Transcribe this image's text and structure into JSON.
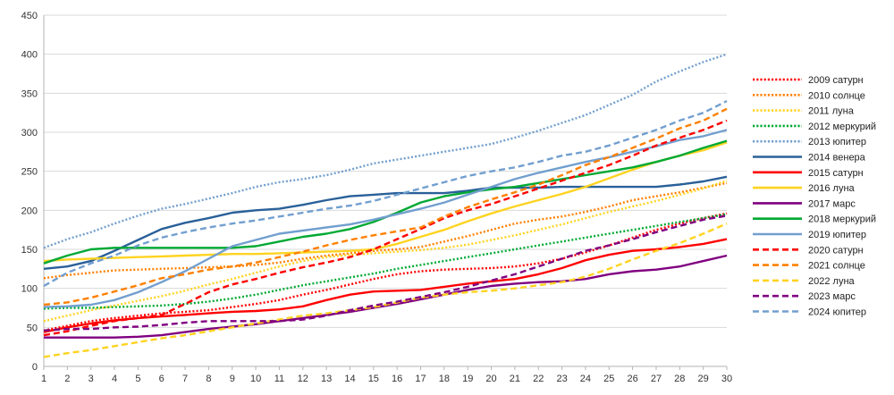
{
  "chart_data": {
    "type": "line",
    "title": "",
    "xlabel": "",
    "ylabel": "",
    "ylim": [
      0,
      450
    ],
    "y_ticks": [
      0,
      50,
      100,
      150,
      200,
      250,
      300,
      350,
      400,
      450
    ],
    "x": [
      1,
      2,
      3,
      4,
      5,
      6,
      7,
      8,
      9,
      10,
      11,
      12,
      13,
      14,
      15,
      16,
      17,
      18,
      19,
      20,
      21,
      22,
      23,
      24,
      25,
      26,
      27,
      28,
      29,
      30
    ],
    "x_tick_labels": [
      "1",
      "2",
      "3",
      "4",
      "5",
      "6",
      "7",
      "8",
      "9",
      "10",
      "11",
      "12",
      "13",
      "14",
      "15",
      "16",
      "17",
      "18",
      "19",
      "20",
      "21",
      "22",
      "23",
      "24",
      "25",
      "26",
      "27",
      "28",
      "29",
      "30"
    ],
    "grid": "horizontal",
    "legend": "right",
    "series": [
      {
        "name": "2009 сатурн",
        "color": "#ff0000",
        "style": "dotted",
        "values": [
          46,
          52,
          58,
          62,
          65,
          68,
          70,
          72,
          76,
          80,
          85,
          92,
          98,
          105,
          112,
          118,
          122,
          124,
          125,
          126,
          128,
          132,
          138,
          146,
          155,
          165,
          175,
          183,
          190,
          196
        ]
      },
      {
        "name": "2010 солнце",
        "color": "#ff8000",
        "style": "dotted",
        "values": [
          113,
          117,
          120,
          123,
          124,
          125,
          126,
          127,
          128,
          130,
          133,
          138,
          142,
          145,
          148,
          150,
          153,
          160,
          167,
          175,
          183,
          188,
          192,
          198,
          205,
          213,
          218,
          223,
          229,
          235
        ]
      },
      {
        "name": "2011 луна",
        "color": "#ffd320",
        "style": "dotted",
        "values": [
          58,
          65,
          72,
          78,
          84,
          90,
          97,
          105,
          112,
          120,
          128,
          135,
          140,
          143,
          145,
          147,
          149,
          152,
          156,
          162,
          168,
          175,
          182,
          190,
          198,
          205,
          212,
          220,
          228,
          238
        ]
      },
      {
        "name": "2012 меркурий",
        "color": "#00a933",
        "style": "dotted",
        "values": [
          74,
          75,
          75,
          76,
          77,
          78,
          80,
          83,
          87,
          92,
          98,
          104,
          109,
          114,
          119,
          125,
          130,
          135,
          140,
          145,
          150,
          155,
          160,
          165,
          170,
          175,
          180,
          185,
          190,
          195
        ]
      },
      {
        "name": "2013 юпитер",
        "color": "#729fcf",
        "style": "dotted",
        "values": [
          152,
          163,
          172,
          183,
          193,
          202,
          208,
          215,
          222,
          230,
          236,
          240,
          245,
          252,
          260,
          265,
          270,
          275,
          280,
          285,
          293,
          302,
          312,
          322,
          335,
          348,
          365,
          378,
          390,
          400
        ]
      },
      {
        "name": "2014 венера",
        "color": "#2a6099",
        "style": "solid",
        "values": [
          125,
          128,
          135,
          148,
          162,
          176,
          184,
          190,
          197,
          200,
          202,
          207,
          213,
          218,
          220,
          222,
          222,
          222,
          225,
          229,
          229,
          229,
          230,
          230,
          230,
          230,
          230,
          233,
          237,
          243
        ]
      },
      {
        "name": "2015 сатурн",
        "color": "#ff0000",
        "style": "solid",
        "values": [
          44,
          50,
          55,
          59,
          62,
          64,
          66,
          68,
          70,
          71,
          73,
          77,
          85,
          92,
          96,
          97,
          98,
          102,
          106,
          109,
          112,
          118,
          126,
          136,
          143,
          148,
          150,
          153,
          157,
          163
        ]
      },
      {
        "name": "2016 луна",
        "color": "#ffd320",
        "style": "solid",
        "values": [
          135,
          137,
          138,
          139,
          140,
          141,
          142,
          143,
          144,
          144,
          145,
          146,
          147,
          148,
          150,
          157,
          166,
          175,
          186,
          196,
          205,
          213,
          221,
          230,
          241,
          252,
          262,
          270,
          277,
          287
        ]
      },
      {
        "name": "2017 марс",
        "color": "#800080",
        "style": "solid",
        "values": [
          37,
          37,
          37,
          37,
          38,
          40,
          44,
          48,
          51,
          54,
          58,
          62,
          66,
          70,
          75,
          80,
          86,
          92,
          98,
          103,
          106,
          108,
          109,
          112,
          118,
          122,
          124,
          128,
          135,
          142
        ]
      },
      {
        "name": "2018 меркурий",
        "color": "#00a933",
        "style": "solid",
        "values": [
          132,
          142,
          150,
          152,
          152,
          152,
          152,
          152,
          152,
          154,
          160,
          166,
          170,
          176,
          185,
          197,
          210,
          218,
          223,
          227,
          230,
          235,
          240,
          245,
          250,
          255,
          262,
          270,
          280,
          289
        ]
      },
      {
        "name": "2019 юпитер",
        "color": "#729fcf",
        "style": "solid",
        "values": [
          76,
          77,
          79,
          85,
          95,
          108,
          122,
          138,
          154,
          162,
          170,
          174,
          178,
          182,
          188,
          195,
          202,
          210,
          220,
          230,
          240,
          248,
          255,
          262,
          268,
          275,
          282,
          290,
          295,
          303
        ]
      },
      {
        "name": "2020 сатурн",
        "color": "#ff0000",
        "style": "dashed",
        "values": [
          40,
          45,
          52,
          58,
          62,
          66,
          80,
          95,
          105,
          112,
          120,
          127,
          133,
          140,
          150,
          163,
          176,
          190,
          200,
          208,
          218,
          228,
          238,
          248,
          258,
          270,
          283,
          293,
          303,
          315
        ]
      },
      {
        "name": "2021 солнце",
        "color": "#ff8000",
        "style": "dashed",
        "values": [
          79,
          82,
          88,
          96,
          104,
          113,
          118,
          124,
          128,
          133,
          140,
          147,
          155,
          162,
          168,
          173,
          178,
          192,
          204,
          214,
          223,
          233,
          245,
          258,
          268,
          280,
          292,
          305,
          315,
          330
        ]
      },
      {
        "name": "2022 луна",
        "color": "#ffd320",
        "style": "dashed",
        "values": [
          12,
          17,
          21,
          26,
          31,
          36,
          40,
          45,
          50,
          55,
          60,
          65,
          68,
          72,
          76,
          82,
          88,
          92,
          95,
          97,
          100,
          104,
          108,
          115,
          125,
          137,
          148,
          158,
          170,
          183
        ]
      },
      {
        "name": "2023 марс",
        "color": "#800080",
        "style": "dashed",
        "values": [
          46,
          48,
          48,
          50,
          51,
          53,
          56,
          58,
          58,
          58,
          58,
          60,
          65,
          72,
          78,
          83,
          89,
          95,
          102,
          110,
          118,
          128,
          138,
          148,
          155,
          163,
          172,
          180,
          188,
          193
        ]
      },
      {
        "name": "2024 юпитер",
        "color": "#729fcf",
        "style": "dashed",
        "values": [
          103,
          120,
          132,
          142,
          155,
          165,
          172,
          178,
          183,
          187,
          192,
          197,
          202,
          206,
          212,
          220,
          228,
          236,
          244,
          250,
          255,
          262,
          270,
          275,
          283,
          293,
          303,
          315,
          325,
          340
        ]
      }
    ]
  }
}
